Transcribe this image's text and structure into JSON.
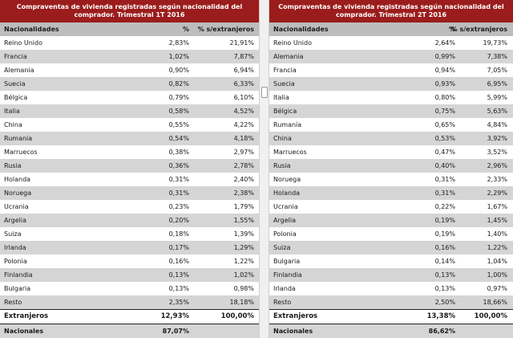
{
  "left": {
    "title": "Compraventas de vivienda registradas según nacionalidad del comprador. Trimestral 1T 2016",
    "headers": [
      "Nacionalidades",
      "%",
      "% s/extranjeros"
    ],
    "rows": [
      {
        "name": "Reino Unido",
        "pct": "2,83%",
        "ext": "21,91%"
      },
      {
        "name": "Francia",
        "pct": "1,02%",
        "ext": "7,87%"
      },
      {
        "name": "Alemania",
        "pct": "0,90%",
        "ext": "6,94%"
      },
      {
        "name": "Suecia",
        "pct": "0,82%",
        "ext": "6,33%"
      },
      {
        "name": "Bélgica",
        "pct": "0,79%",
        "ext": "6,10%"
      },
      {
        "name": "Italia",
        "pct": "0,58%",
        "ext": "4,52%"
      },
      {
        "name": "China",
        "pct": "0,55%",
        "ext": "4,22%"
      },
      {
        "name": "Rumania",
        "pct": "0,54%",
        "ext": "4,18%"
      },
      {
        "name": "Marruecos",
        "pct": "0,38%",
        "ext": "2,97%"
      },
      {
        "name": "Rusia",
        "pct": "0,36%",
        "ext": "2,78%"
      },
      {
        "name": "Holanda",
        "pct": "0,31%",
        "ext": "2,40%"
      },
      {
        "name": "Noruega",
        "pct": "0,31%",
        "ext": "2,38%"
      },
      {
        "name": "Ucrania",
        "pct": "0,23%",
        "ext": "1,79%"
      },
      {
        "name": "Argelia",
        "pct": "0,20%",
        "ext": "1,55%"
      },
      {
        "name": "Suiza",
        "pct": "0,18%",
        "ext": "1,39%"
      },
      {
        "name": "Irlanda",
        "pct": "0,17%",
        "ext": "1,29%"
      },
      {
        "name": "Polonia",
        "pct": "0,16%",
        "ext": "1,22%"
      },
      {
        "name": "Finlandia",
        "pct": "0,13%",
        "ext": "1,02%"
      },
      {
        "name": "Bulgaria",
        "pct": "0,13%",
        "ext": "0,98%"
      },
      {
        "name": "Resto",
        "pct": "2,35%",
        "ext": "18,18%"
      }
    ],
    "totals": {
      "name": "Extranjeros",
      "pct": "12,93%",
      "ext": "100,00%"
    },
    "nacionales": {
      "name": "Nacionales",
      "pct": "87,07%"
    }
  },
  "right": {
    "title": "Compraventas de vivienda registradas según nacionalidad del comprador. Trimestral 2T 2016",
    "headers": [
      "Nacionalidades",
      "%",
      "% s/extranjeros"
    ],
    "rows": [
      {
        "name": "Reino Unido",
        "pct": "2,64%",
        "ext": "19,73%"
      },
      {
        "name": "Alemania",
        "pct": "0,99%",
        "ext": "7,38%"
      },
      {
        "name": "Francia",
        "pct": "0,94%",
        "ext": "7,05%"
      },
      {
        "name": "Suecia",
        "pct": "0,93%",
        "ext": "6,95%"
      },
      {
        "name": "Italia",
        "pct": "0,80%",
        "ext": "5,99%"
      },
      {
        "name": "Bélgica",
        "pct": "0,75%",
        "ext": "5,63%"
      },
      {
        "name": "Rumanía",
        "pct": "0,65%",
        "ext": "4,84%"
      },
      {
        "name": "China",
        "pct": "0,53%",
        "ext": "3,92%"
      },
      {
        "name": "Marruecos",
        "pct": "0,47%",
        "ext": "3,52%"
      },
      {
        "name": "Rusia",
        "pct": "0,40%",
        "ext": "2,96%"
      },
      {
        "name": "Noruega",
        "pct": "0,31%",
        "ext": "2,33%"
      },
      {
        "name": "Holanda",
        "pct": "0,31%",
        "ext": "2,29%"
      },
      {
        "name": "Ucrania",
        "pct": "0,22%",
        "ext": "1,67%"
      },
      {
        "name": "Argelia",
        "pct": "0,19%",
        "ext": "1,45%"
      },
      {
        "name": "Polonia",
        "pct": "0,19%",
        "ext": "1,40%"
      },
      {
        "name": "Suiza",
        "pct": "0,16%",
        "ext": "1,22%"
      },
      {
        "name": "Bulgaria",
        "pct": "0,14%",
        "ext": "1,04%"
      },
      {
        "name": "Finlandia",
        "pct": "0,13%",
        "ext": "1,00%"
      },
      {
        "name": "Irlanda",
        "pct": "0,13%",
        "ext": "0,97%"
      },
      {
        "name": "Resto",
        "pct": "2,50%",
        "ext": "18,66%"
      }
    ],
    "totals": {
      "name": "Extranjeros",
      "pct": "13,38%",
      "ext": "100,00%"
    },
    "nacionales": {
      "name": "Nacionales",
      "pct": "86,62%"
    }
  },
  "colors": {
    "title_bg": "#9b1c1c",
    "header_bg": "#bdbdbd",
    "stripe": "#d5d5d5",
    "nacionales_bar": "#1f2f8a"
  }
}
